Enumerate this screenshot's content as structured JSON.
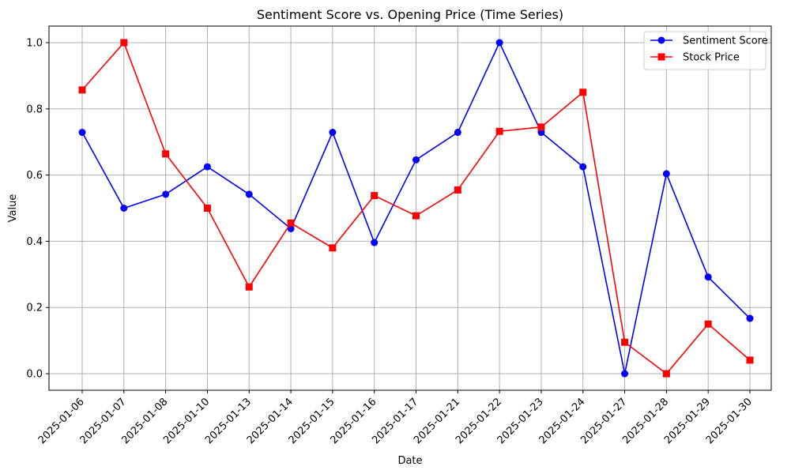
{
  "chart_data": {
    "type": "line",
    "title": "Sentiment Score vs. Opening Price (Time Series)",
    "xlabel": "Date",
    "ylabel": "Value",
    "categories": [
      "2025-01-06",
      "2025-01-07",
      "2025-01-08",
      "2025-01-10",
      "2025-01-13",
      "2025-01-14",
      "2025-01-15",
      "2025-01-16",
      "2025-01-17",
      "2025-01-21",
      "2025-01-22",
      "2025-01-23",
      "2025-01-24",
      "2025-01-27",
      "2025-01-28",
      "2025-01-29",
      "2025-01-30"
    ],
    "ylim": [
      -0.05,
      1.05
    ],
    "yticks": [
      0.0,
      0.2,
      0.4,
      0.6,
      0.8,
      1.0
    ],
    "ytick_labels": [
      "0.0",
      "0.2",
      "0.4",
      "0.6",
      "0.8",
      "1.0"
    ],
    "grid": true,
    "legend_position": "top-right",
    "series": [
      {
        "name": "Sentiment Score",
        "color": "#0000ff",
        "marker": "circle",
        "values": [
          0.729,
          0.5,
          0.542,
          0.625,
          0.542,
          0.438,
          0.729,
          0.396,
          0.646,
          0.729,
          1.0,
          0.729,
          0.625,
          0.0,
          0.604,
          0.292,
          0.167
        ]
      },
      {
        "name": "Stock Price",
        "color": "#ff0000",
        "marker": "square",
        "values": [
          0.857,
          1.0,
          0.664,
          0.5,
          0.262,
          0.455,
          0.38,
          0.538,
          0.477,
          0.555,
          0.732,
          0.745,
          0.85,
          0.095,
          0.0,
          0.15,
          0.041
        ]
      }
    ]
  }
}
